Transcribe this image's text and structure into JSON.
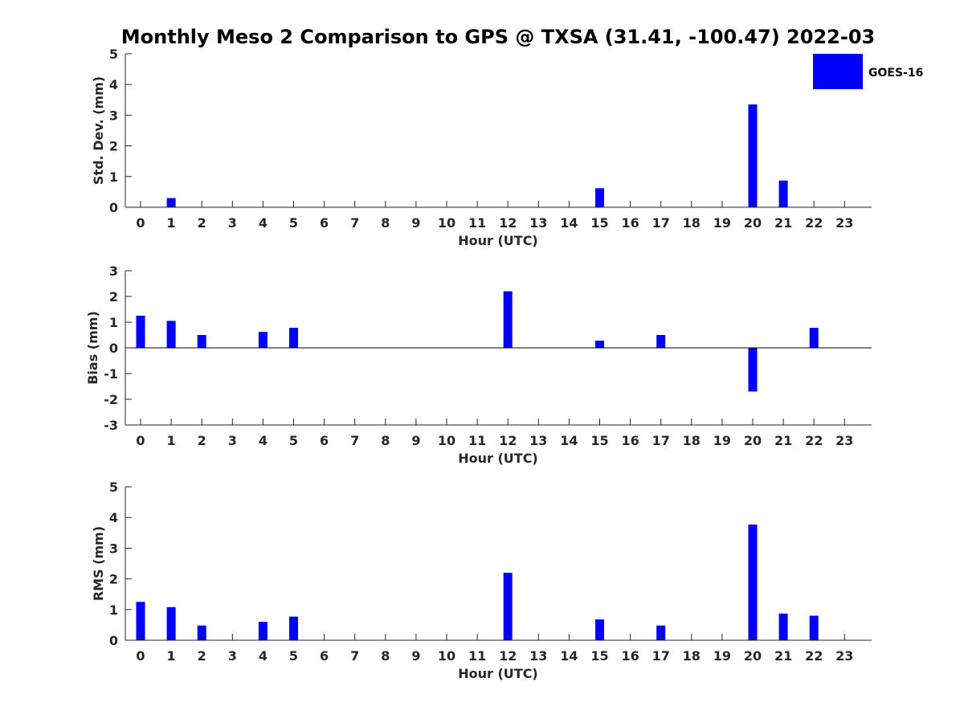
{
  "title": "Monthly Meso 2 Comparison to GPS @ TXSA (31.41, -100.47) 2022-03",
  "legend": {
    "label": "GOES-16",
    "color": "#0000ff",
    "position": "top-right"
  },
  "bar_color": "#0000ff",
  "chart_data": [
    {
      "type": "bar",
      "xlabel": "Hour (UTC)",
      "ylabel": "Std. Dev. (mm)",
      "ylim": [
        0,
        5
      ],
      "yticks": [
        0,
        1,
        2,
        3,
        4,
        5
      ],
      "categories": [
        0,
        1,
        2,
        3,
        4,
        5,
        6,
        7,
        8,
        9,
        10,
        11,
        12,
        13,
        14,
        15,
        16,
        17,
        18,
        19,
        20,
        21,
        22,
        23
      ],
      "series": [
        {
          "name": "GOES-16",
          "values": [
            0,
            0.3,
            0,
            0,
            0,
            0,
            0,
            0,
            0,
            0,
            0,
            0,
            0,
            0,
            0,
            0.62,
            0,
            0,
            0,
            0,
            3.35,
            0.87,
            0,
            0
          ]
        }
      ],
      "grid": false
    },
    {
      "type": "bar",
      "xlabel": "Hour (UTC)",
      "ylabel": "Bias (mm)",
      "ylim": [
        -3,
        3
      ],
      "yticks": [
        -3,
        -2,
        -1,
        0,
        1,
        2,
        3
      ],
      "categories": [
        0,
        1,
        2,
        3,
        4,
        5,
        6,
        7,
        8,
        9,
        10,
        11,
        12,
        13,
        14,
        15,
        16,
        17,
        18,
        19,
        20,
        21,
        22,
        23
      ],
      "series": [
        {
          "name": "GOES-16",
          "values": [
            1.25,
            1.05,
            0.5,
            0,
            0.62,
            0.78,
            0,
            0,
            0,
            0,
            0,
            0,
            2.2,
            0,
            0,
            0.28,
            0,
            0.5,
            0,
            0,
            -1.7,
            0,
            0.78,
            0
          ]
        }
      ],
      "grid": false
    },
    {
      "type": "bar",
      "xlabel": "Hour (UTC)",
      "ylabel": "RMS (mm)",
      "ylim": [
        0,
        5
      ],
      "yticks": [
        0,
        1,
        2,
        3,
        4,
        5
      ],
      "categories": [
        0,
        1,
        2,
        3,
        4,
        5,
        6,
        7,
        8,
        9,
        10,
        11,
        12,
        13,
        14,
        15,
        16,
        17,
        18,
        19,
        20,
        21,
        22,
        23
      ],
      "series": [
        {
          "name": "GOES-16",
          "values": [
            1.25,
            1.08,
            0.48,
            0,
            0.6,
            0.77,
            0,
            0,
            0,
            0,
            0,
            0,
            2.2,
            0,
            0,
            0.68,
            0,
            0.48,
            0,
            0,
            3.77,
            0.87,
            0.8,
            0
          ]
        }
      ],
      "grid": false
    }
  ]
}
